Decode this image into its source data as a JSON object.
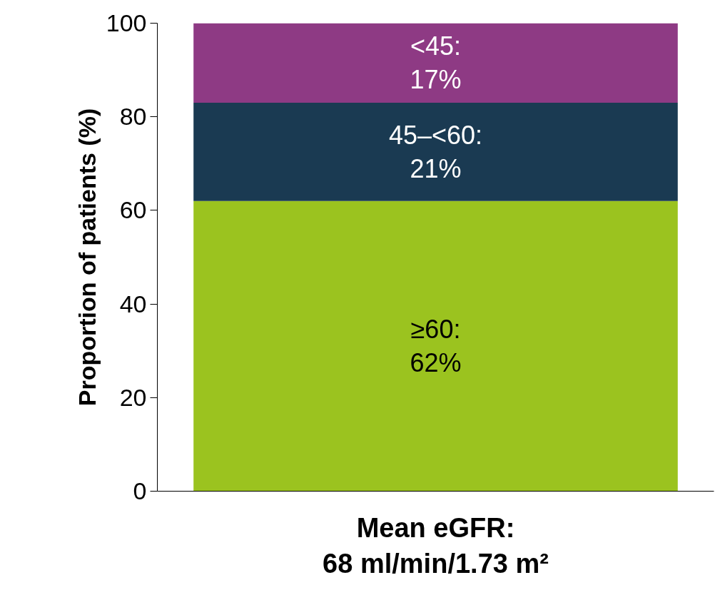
{
  "chart_data": {
    "type": "bar",
    "stacked": true,
    "xlabel": "Mean eGFR:\n68 ml/min/1.73 m²",
    "ylabel": "Proportion of patients (%)",
    "categories": [
      null
    ],
    "series": [
      {
        "name": "≥60:",
        "color": "#9bc31f",
        "values": [
          62
        ],
        "value_labels": [
          "62%"
        ]
      },
      {
        "name": "45–<60:",
        "color": "#1a3a52",
        "values": [
          21
        ],
        "value_labels": [
          "21%"
        ]
      },
      {
        "name": "<45:",
        "color": "#8e3a84",
        "values": [
          17
        ],
        "value_labels": [
          "17%"
        ]
      }
    ],
    "ylim": [
      0,
      100
    ],
    "yticks": [
      0,
      20,
      40,
      60,
      80,
      100
    ],
    "grid": false
  }
}
